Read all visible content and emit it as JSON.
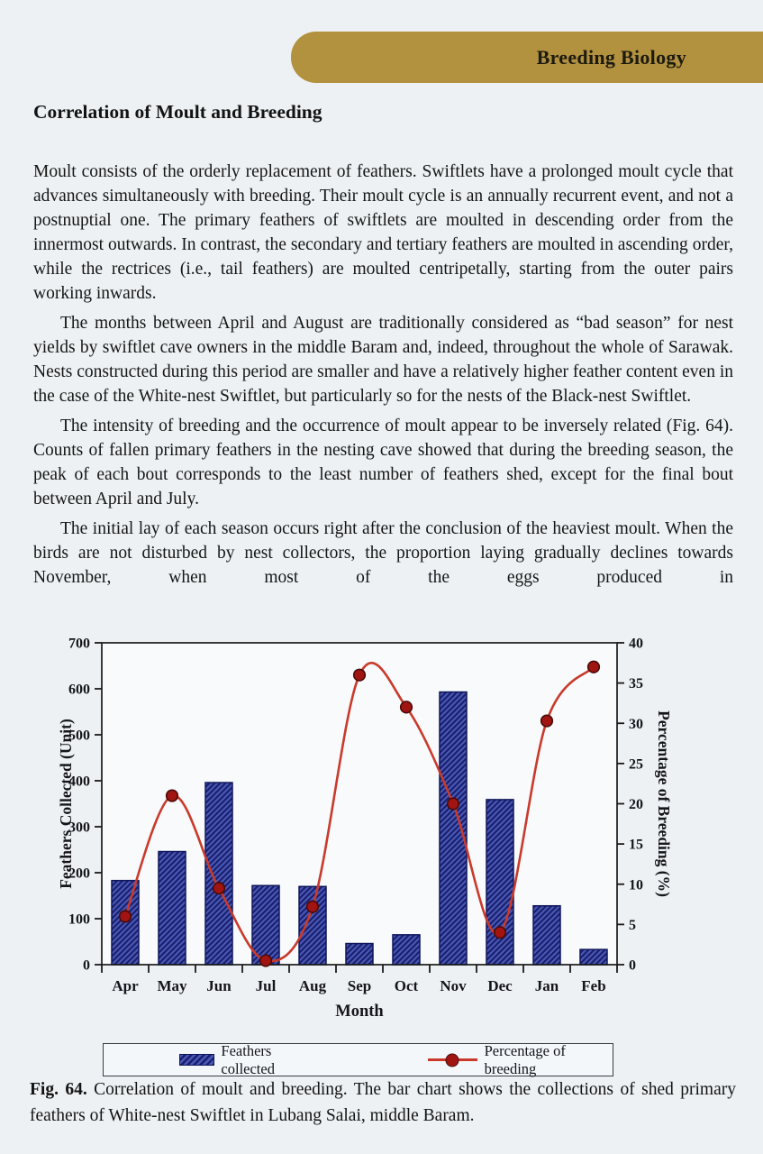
{
  "banner": {
    "title": "Breeding Biology",
    "color": "#b3923f"
  },
  "heading": "Correlation of Moult and Breeding",
  "paragraphs": [
    "Moult consists of the orderly replacement of feathers. Swiftlets have a prolonged moult cycle that advances simultaneously with breeding. Their moult cycle is an annually recurrent event, and not a postnuptial one. The primary feathers of swiftlets are moulted in descending order from the innermost outwards. In contrast, the secondary and tertiary feathers are moulted in ascending order, while the rectrices (i.e., tail feathers) are moulted centripetally, starting from the outer pairs working inwards.",
    "The months between April and August are traditionally considered as “bad season” for nest yields by swiftlet cave owners in the middle Baram and, indeed, throughout the whole of Sarawak. Nests constructed during this period are smaller and have a relatively higher feather content even in the case of the White-nest Swiftlet, but particularly so for the nests of the Black-nest Swiftlet.",
    "The intensity of breeding and the occurrence of moult appear to be inversely related (Fig. 64). Counts of fallen primary feathers in the nesting cave showed that during the breeding season, the peak of each bout corresponds to the least number of feathers shed, except for the final bout between April and July.",
    "The initial lay of each season occurs right after the conclusion of the heaviest moult. When the birds are not disturbed by nest collectors, the proportion laying gradually declines towards November, when most of the eggs produced in"
  ],
  "caption": {
    "label": "Fig. 64.",
    "text": "Correlation of moult and breeding. The bar chart shows the collections of shed primary feathers of White-nest Swiftlet in Lubang Salai, middle Baram."
  },
  "chart_data": {
    "type": "bar+line",
    "categories": [
      "Apr",
      "May",
      "Jun",
      "Jul",
      "Aug",
      "Sep",
      "Oct",
      "Nov",
      "Dec",
      "Jan",
      "Feb"
    ],
    "series": [
      {
        "name": "Feathers collected",
        "type": "bar",
        "axis": "left",
        "values": [
          183,
          246,
          396,
          172,
          170,
          46,
          65,
          593,
          359,
          128,
          33
        ]
      },
      {
        "name": "Percentage of breeding",
        "type": "line",
        "axis": "right",
        "values": [
          6,
          21,
          9.5,
          0.5,
          7.2,
          36,
          32,
          20,
          4,
          30.3,
          37
        ]
      }
    ],
    "xlabel": "Month",
    "y_left": {
      "label": "Feathers Collected (Unit)",
      "min": 0,
      "max": 700,
      "step": 100
    },
    "y_right": {
      "label": "Percentage of Breeding (%)",
      "min": 0,
      "max": 40,
      "step": 5
    },
    "legend": [
      "Feathers collected",
      "Percentage of breeding"
    ],
    "grid": false,
    "legend_position": "boxed-below",
    "colors": {
      "bar_fill": "#4a58b4",
      "bar_hatch": "#181f6e",
      "bar_border": "#10165a",
      "line": "#c93a2b",
      "marker": "#a01511",
      "marker_border": "#4a0b08",
      "axis": "#1a1a1a",
      "plot_bg": "#f8fafc"
    }
  }
}
